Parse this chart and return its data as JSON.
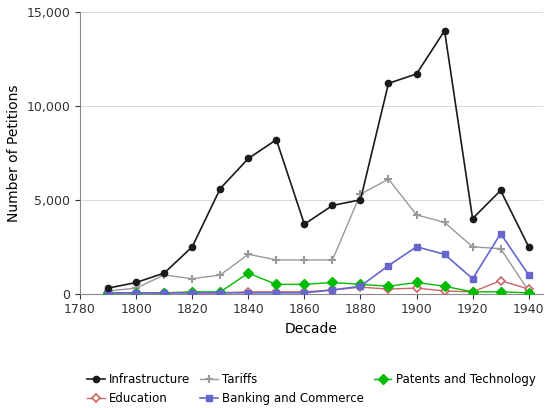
{
  "decades": [
    1790,
    1800,
    1810,
    1820,
    1830,
    1840,
    1850,
    1860,
    1870,
    1880,
    1890,
    1900,
    1910,
    1920,
    1930,
    1940
  ],
  "infrastructure": [
    300,
    600,
    1100,
    2500,
    5600,
    7200,
    8200,
    3700,
    4700,
    5000,
    11200,
    11700,
    14000,
    4000,
    5500,
    2500
  ],
  "banking_commerce": [
    50,
    50,
    50,
    50,
    50,
    50,
    50,
    50,
    200,
    400,
    1500,
    2500,
    2100,
    800,
    3200,
    1000
  ],
  "education": [
    50,
    50,
    50,
    50,
    50,
    100,
    100,
    100,
    200,
    350,
    250,
    300,
    150,
    100,
    700,
    250
  ],
  "patents_technology": [
    50,
    50,
    50,
    100,
    100,
    1100,
    500,
    500,
    600,
    500,
    400,
    600,
    400,
    100,
    100,
    50
  ],
  "tariffs": [
    150,
    300,
    1000,
    800,
    1000,
    2100,
    1800,
    1800,
    1800,
    5300,
    6100,
    4200,
    3800,
    2500,
    2400,
    150
  ],
  "infrastructure_color": "#1a1a1a",
  "banking_color": "#6666cc",
  "education_color": "#cc6666",
  "patents_color": "#00bb00",
  "tariffs_color": "#999999",
  "xlabel": "Decade",
  "ylabel": "Number of Petitions",
  "ylim": [
    0,
    15000
  ],
  "yticks": [
    0,
    5000,
    10000,
    15000
  ],
  "xlim": [
    1780,
    1945
  ],
  "xticks": [
    1780,
    1800,
    1820,
    1840,
    1860,
    1880,
    1900,
    1920,
    1940
  ],
  "legend_order": [
    0,
    2,
    4,
    1,
    3
  ],
  "legend_labels": [
    "Infrastructure",
    "Education",
    "Tariffs",
    "Banking and Commerce",
    "Patents and Technology"
  ]
}
